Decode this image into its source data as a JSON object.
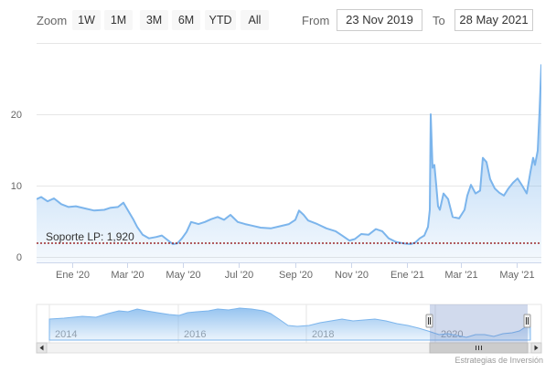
{
  "range_selector": {
    "zoom_label": "Zoom",
    "buttons": [
      "1W",
      "1M",
      "3M",
      "6M",
      "YTD",
      "All"
    ],
    "from_label": "From",
    "from_value": "23 Nov 2019",
    "to_label": "To",
    "to_value": "28 May 2021"
  },
  "chart_data": {
    "type": "area",
    "title": "",
    "xlabel": "",
    "ylabel": "",
    "x_range": [
      "2019-11-23",
      "2021-05-28"
    ],
    "ylim": [
      0,
      30
    ],
    "y_ticks": [
      0,
      10,
      20
    ],
    "x_ticks": [
      {
        "label": "Ene '20",
        "date": "2020-01-01"
      },
      {
        "label": "Mar '20",
        "date": "2020-03-01"
      },
      {
        "label": "May '20",
        "date": "2020-05-01"
      },
      {
        "label": "Jul '20",
        "date": "2020-07-01"
      },
      {
        "label": "Sep '20",
        "date": "2020-09-01"
      },
      {
        "label": "Nov '20",
        "date": "2020-11-01"
      },
      {
        "label": "Ene '21",
        "date": "2021-01-01"
      },
      {
        "label": "Mar '21",
        "date": "2021-03-01"
      },
      {
        "label": "May '21",
        "date": "2021-05-01"
      }
    ],
    "grid": true,
    "series": [
      {
        "color": "#7cb5ec",
        "points": [
          [
            "2019-11-23",
            8.1
          ],
          [
            "2019-11-28",
            8.4
          ],
          [
            "2019-12-05",
            7.8
          ],
          [
            "2019-12-12",
            8.2
          ],
          [
            "2019-12-20",
            7.4
          ],
          [
            "2019-12-28",
            7.0
          ],
          [
            "2020-01-05",
            7.1
          ],
          [
            "2020-01-15",
            6.8
          ],
          [
            "2020-01-25",
            6.5
          ],
          [
            "2020-02-05",
            6.6
          ],
          [
            "2020-02-12",
            6.9
          ],
          [
            "2020-02-20",
            7.0
          ],
          [
            "2020-02-26",
            7.6
          ],
          [
            "2020-03-02",
            6.5
          ],
          [
            "2020-03-08",
            5.2
          ],
          [
            "2020-03-12",
            4.2
          ],
          [
            "2020-03-18",
            3.1
          ],
          [
            "2020-03-25",
            2.6
          ],
          [
            "2020-04-02",
            2.8
          ],
          [
            "2020-04-08",
            3.0
          ],
          [
            "2020-04-15",
            2.3
          ],
          [
            "2020-04-20",
            1.8
          ],
          [
            "2020-04-25",
            1.9
          ],
          [
            "2020-04-30",
            2.6
          ],
          [
            "2020-05-05",
            3.5
          ],
          [
            "2020-05-10",
            4.9
          ],
          [
            "2020-05-18",
            4.6
          ],
          [
            "2020-05-25",
            4.9
          ],
          [
            "2020-06-01",
            5.3
          ],
          [
            "2020-06-08",
            5.6
          ],
          [
            "2020-06-15",
            5.2
          ],
          [
            "2020-06-22",
            5.9
          ],
          [
            "2020-06-30",
            4.9
          ],
          [
            "2020-07-08",
            4.6
          ],
          [
            "2020-07-15",
            4.4
          ],
          [
            "2020-07-25",
            4.1
          ],
          [
            "2020-08-05",
            4.0
          ],
          [
            "2020-08-15",
            4.3
          ],
          [
            "2020-08-25",
            4.6
          ],
          [
            "2020-09-01",
            5.2
          ],
          [
            "2020-09-05",
            6.5
          ],
          [
            "2020-09-10",
            5.9
          ],
          [
            "2020-09-15",
            5.1
          ],
          [
            "2020-09-25",
            4.6
          ],
          [
            "2020-10-05",
            4.0
          ],
          [
            "2020-10-15",
            3.6
          ],
          [
            "2020-10-22",
            3.0
          ],
          [
            "2020-10-30",
            2.3
          ],
          [
            "2020-11-05",
            2.5
          ],
          [
            "2020-11-12",
            3.2
          ],
          [
            "2020-11-20",
            3.1
          ],
          [
            "2020-11-28",
            3.9
          ],
          [
            "2020-12-05",
            3.6
          ],
          [
            "2020-12-12",
            2.6
          ],
          [
            "2020-12-20",
            2.1
          ],
          [
            "2020-12-28",
            1.9
          ],
          [
            "2021-01-05",
            1.8
          ],
          [
            "2021-01-10",
            2.0
          ],
          [
            "2021-01-15",
            2.6
          ],
          [
            "2021-01-20",
            3.0
          ],
          [
            "2021-01-24",
            4.2
          ],
          [
            "2021-01-26",
            6.6
          ],
          [
            "2021-01-27",
            20.0
          ],
          [
            "2021-01-29",
            12.5
          ],
          [
            "2021-01-31",
            12.9
          ],
          [
            "2021-02-02",
            10.1
          ],
          [
            "2021-02-04",
            7.1
          ],
          [
            "2021-02-06",
            6.6
          ],
          [
            "2021-02-10",
            8.9
          ],
          [
            "2021-02-15",
            8.1
          ],
          [
            "2021-02-20",
            5.6
          ],
          [
            "2021-02-27",
            5.4
          ],
          [
            "2021-03-05",
            6.6
          ],
          [
            "2021-03-08",
            8.6
          ],
          [
            "2021-03-12",
            10.1
          ],
          [
            "2021-03-17",
            8.9
          ],
          [
            "2021-03-22",
            9.3
          ],
          [
            "2021-03-25",
            13.9
          ],
          [
            "2021-03-29",
            13.3
          ],
          [
            "2021-04-02",
            10.9
          ],
          [
            "2021-04-07",
            9.6
          ],
          [
            "2021-04-12",
            9.0
          ],
          [
            "2021-04-17",
            8.6
          ],
          [
            "2021-04-22",
            9.6
          ],
          [
            "2021-04-27",
            10.4
          ],
          [
            "2021-05-02",
            11.0
          ],
          [
            "2021-05-07",
            10.0
          ],
          [
            "2021-05-12",
            8.9
          ],
          [
            "2021-05-16",
            11.9
          ],
          [
            "2021-05-19",
            13.9
          ],
          [
            "2021-05-21",
            12.9
          ],
          [
            "2021-05-24",
            14.9
          ],
          [
            "2021-05-26",
            20.4
          ],
          [
            "2021-05-28",
            27.0
          ]
        ]
      }
    ],
    "support_line": {
      "label": "Soporte LP: 1,920",
      "value": 1.92,
      "color": "#8b0000"
    },
    "navigator": {
      "years": [
        "2014",
        "2016",
        "2018",
        "2020"
      ],
      "selected_range": [
        "2019-11-23",
        "2021-05-28"
      ]
    },
    "credit": "Estrategias de Inversión"
  }
}
